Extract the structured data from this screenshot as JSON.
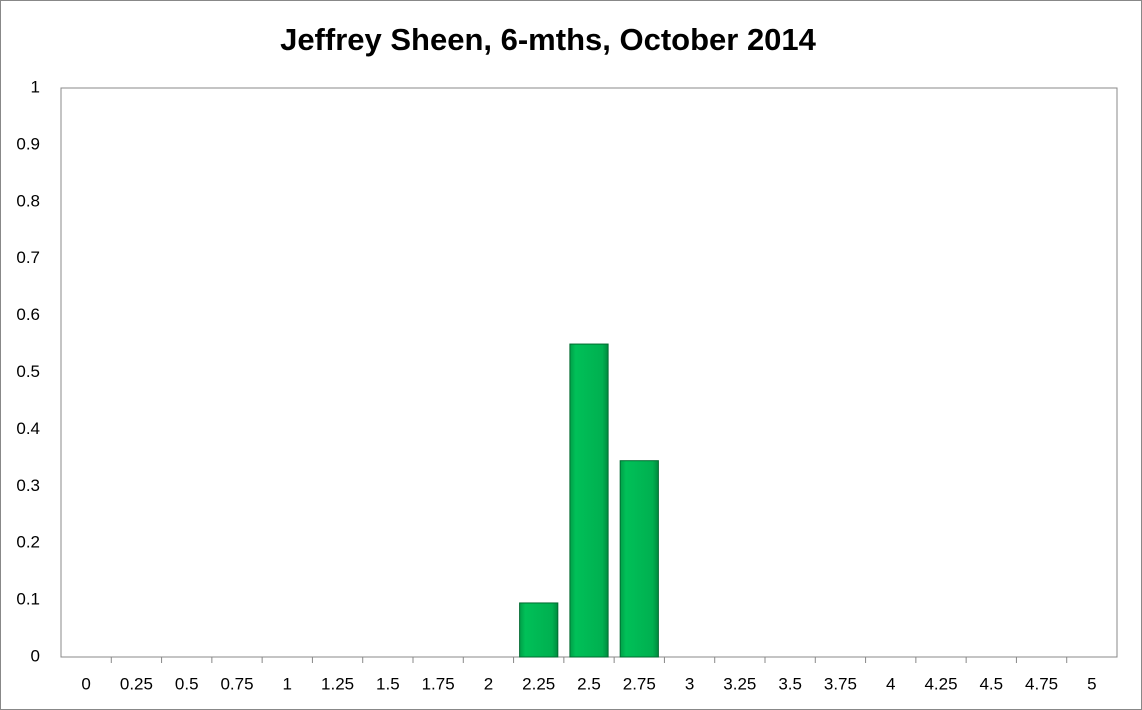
{
  "chart_data": {
    "type": "bar",
    "title": "Jeffrey Sheen, 6-mths, October 2014",
    "categories": [
      "0",
      "0.25",
      "0.5",
      "0.75",
      "1",
      "1.25",
      "1.5",
      "1.75",
      "2",
      "2.25",
      "2.5",
      "2.75",
      "3",
      "3.25",
      "3.5",
      "3.75",
      "4",
      "4.25",
      "4.5",
      "4.75",
      "5"
    ],
    "values": [
      0,
      0,
      0,
      0,
      0,
      0,
      0,
      0,
      0,
      0.095,
      0.55,
      0.345,
      0,
      0,
      0,
      0,
      0,
      0,
      0,
      0,
      0
    ],
    "color": "#00b050",
    "ylim": [
      0,
      1
    ],
    "yticks": [
      0,
      0.1,
      0.2,
      0.3,
      0.4,
      0.5,
      0.6,
      0.7,
      0.8,
      0.9,
      1
    ],
    "grid": false
  }
}
